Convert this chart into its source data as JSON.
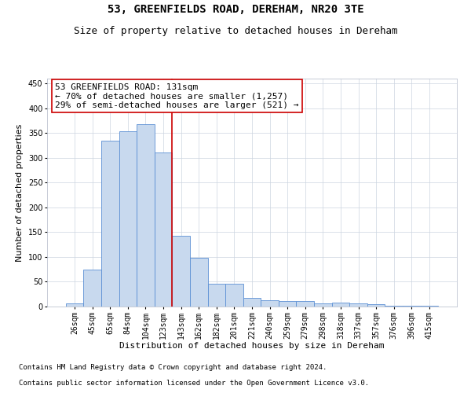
{
  "title": "53, GREENFIELDS ROAD, DEREHAM, NR20 3TE",
  "subtitle": "Size of property relative to detached houses in Dereham",
  "xlabel": "Distribution of detached houses by size in Dereham",
  "ylabel": "Number of detached properties",
  "categories": [
    "26sqm",
    "45sqm",
    "65sqm",
    "84sqm",
    "104sqm",
    "123sqm",
    "143sqm",
    "162sqm",
    "182sqm",
    "201sqm",
    "221sqm",
    "240sqm",
    "259sqm",
    "279sqm",
    "298sqm",
    "318sqm",
    "337sqm",
    "357sqm",
    "376sqm",
    "396sqm",
    "415sqm"
  ],
  "values": [
    7,
    75,
    335,
    353,
    368,
    311,
    143,
    98,
    46,
    46,
    18,
    13,
    11,
    11,
    6,
    8,
    7,
    4,
    2,
    1,
    2
  ],
  "bar_color": "#c8d9ee",
  "bar_edge_color": "#5b8fd4",
  "vline_x": 5.5,
  "vline_color": "#cc0000",
  "annotation_line1": "53 GREENFIELDS ROAD: 131sqm",
  "annotation_line2": "← 70% of detached houses are smaller (1,257)",
  "annotation_line3": "29% of semi-detached houses are larger (521) →",
  "annotation_box_color": "#cc0000",
  "ylim": [
    0,
    460
  ],
  "yticks": [
    0,
    50,
    100,
    150,
    200,
    250,
    300,
    350,
    400,
    450
  ],
  "footnote1": "Contains HM Land Registry data © Crown copyright and database right 2024.",
  "footnote2": "Contains public sector information licensed under the Open Government Licence v3.0.",
  "bg_color": "#ffffff",
  "grid_color": "#ccd5e0",
  "title_fontsize": 10,
  "subtitle_fontsize": 9,
  "axis_label_fontsize": 8,
  "tick_fontsize": 7,
  "annotation_fontsize": 8,
  "footnote_fontsize": 6.5
}
